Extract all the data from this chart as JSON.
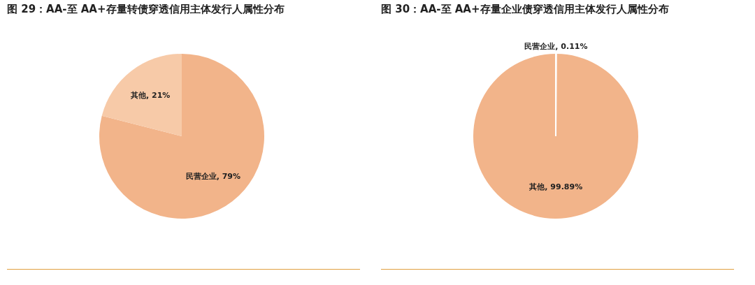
{
  "chart_data": [
    {
      "type": "pie",
      "title": "图 29：AA-至 AA+存量转债穿透信用主体发行人属性分布",
      "categories": [
        "民营企业",
        "其他"
      ],
      "values": [
        79,
        21
      ],
      "colors": [
        "#f2b48a",
        "#f7caa8"
      ],
      "value_labels": [
        "79%",
        "21%"
      ],
      "legend": false
    },
    {
      "type": "pie",
      "title": "图 30：AA-至 AA+存量企业债穿透信用主体发行人属性分布",
      "categories": [
        "民营企业",
        "其他"
      ],
      "values": [
        0.11,
        99.89
      ],
      "colors": [
        "#ffffff",
        "#f2b48a"
      ],
      "value_labels": [
        "0.11%",
        "99.89%"
      ],
      "legend": false
    }
  ]
}
